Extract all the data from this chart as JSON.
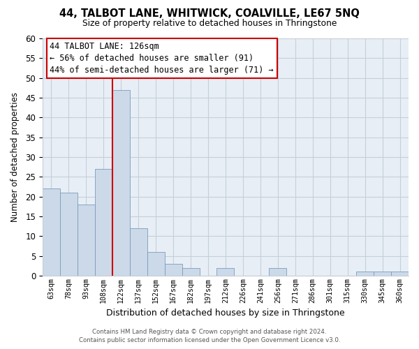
{
  "title_line1": "44, TALBOT LANE, WHITWICK, COALVILLE, LE67 5NQ",
  "title_line2": "Size of property relative to detached houses in Thringstone",
  "xlabel": "Distribution of detached houses by size in Thringstone",
  "ylabel": "Number of detached properties",
  "bar_labels": [
    "63sqm",
    "78sqm",
    "93sqm",
    "108sqm",
    "122sqm",
    "137sqm",
    "152sqm",
    "167sqm",
    "182sqm",
    "197sqm",
    "212sqm",
    "226sqm",
    "241sqm",
    "256sqm",
    "271sqm",
    "286sqm",
    "301sqm",
    "315sqm",
    "330sqm",
    "345sqm",
    "360sqm"
  ],
  "bar_values": [
    22,
    21,
    18,
    27,
    47,
    12,
    6,
    3,
    2,
    0,
    2,
    0,
    0,
    2,
    0,
    0,
    0,
    0,
    1,
    1,
    1
  ],
  "bar_color": "#ccd9e8",
  "bar_edge_color": "#7a9cbf",
  "highlight_index": 4,
  "highlight_line_color": "#cc0000",
  "ylim": [
    0,
    60
  ],
  "yticks": [
    0,
    5,
    10,
    15,
    20,
    25,
    30,
    35,
    40,
    45,
    50,
    55,
    60
  ],
  "annotation_title": "44 TALBOT LANE: 126sqm",
  "annotation_line1": "← 56% of detached houses are smaller (91)",
  "annotation_line2": "44% of semi-detached houses are larger (71) →",
  "footer_line1": "Contains HM Land Registry data © Crown copyright and database right 2024.",
  "footer_line2": "Contains public sector information licensed under the Open Government Licence v3.0.",
  "bg_color": "#ffffff",
  "plot_bg_color": "#e8eef5",
  "grid_color": "#c5cfd8"
}
